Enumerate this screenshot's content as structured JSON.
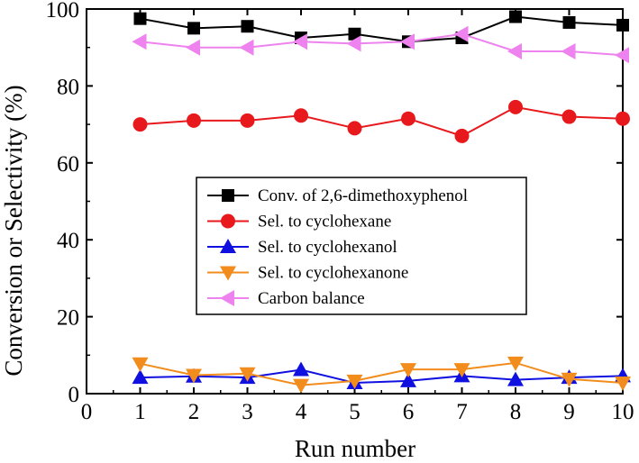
{
  "chart_data": {
    "type": "line",
    "title": "",
    "xlabel": "Run number",
    "ylabel": "Conversion or Selectivity (%)",
    "xlim": [
      0,
      10
    ],
    "ylim": [
      0,
      100
    ],
    "x_ticks": [
      "0",
      "1",
      "2",
      "3",
      "4",
      "5",
      "6",
      "7",
      "8",
      "9",
      "10"
    ],
    "y_ticks": [
      "0",
      "20",
      "40",
      "60",
      "80",
      "100"
    ],
    "x": [
      1,
      2,
      3,
      4,
      5,
      6,
      7,
      8,
      9,
      10
    ],
    "grid": false,
    "legend_position": "center",
    "series": [
      {
        "name": "Conv. of 2,6-dimethoxyphenol",
        "marker": "square",
        "color": "#000000",
        "values": [
          97.5,
          95.0,
          95.5,
          92.5,
          93.5,
          91.5,
          92.5,
          98.0,
          96.5,
          95.8
        ]
      },
      {
        "name": "Sel. to cyclohexane",
        "marker": "circle",
        "color": "#e8191c",
        "values": [
          70.0,
          71.0,
          71.0,
          72.3,
          69.0,
          71.5,
          67.0,
          74.5,
          72.0,
          71.5
        ]
      },
      {
        "name": "Sel. to cyclohexanol",
        "marker": "triangle-up",
        "color": "#1010e0",
        "values": [
          4.2,
          4.5,
          4.2,
          6.2,
          2.8,
          3.3,
          4.6,
          3.6,
          4.2,
          4.6
        ]
      },
      {
        "name": "Sel. to cyclohexanone",
        "marker": "triangle-down",
        "color": "#f28c1c",
        "values": [
          7.8,
          4.8,
          5.2,
          2.2,
          3.3,
          6.3,
          6.3,
          8.0,
          3.8,
          2.8
        ]
      },
      {
        "name": "Carbon balance",
        "marker": "triangle-left",
        "color": "#ee82ee",
        "values": [
          91.5,
          90.0,
          90.0,
          91.5,
          91.0,
          91.5,
          93.5,
          89.0,
          89.0,
          88.0
        ]
      }
    ]
  }
}
